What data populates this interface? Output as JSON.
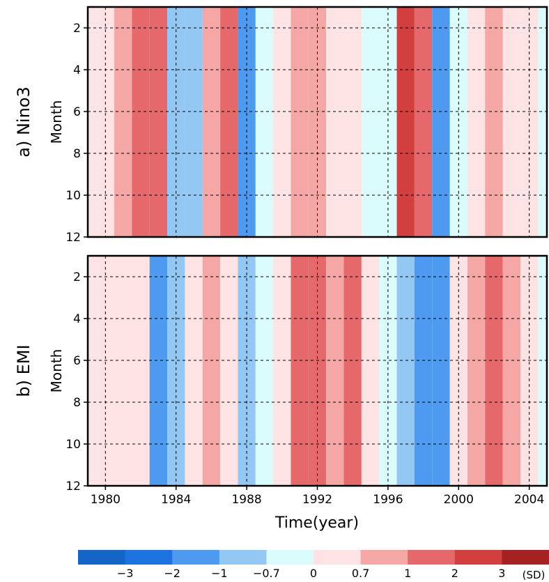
{
  "chart_data": [
    {
      "type": "heatmap",
      "panel_label": "a) Nino3",
      "ylabel": "Month",
      "xlim": [
        1979,
        2005
      ],
      "ylim": [
        12,
        1
      ],
      "yticks": [
        "2",
        "4",
        "6",
        "8",
        "10",
        "12"
      ],
      "xticks": [],
      "anomaly_by_year_sd": [
        [
          1979,
          0
        ],
        [
          1980,
          0.2
        ],
        [
          1981,
          0.8
        ],
        [
          1982,
          1.8
        ],
        [
          1983,
          1.5
        ],
        [
          1984,
          -0.9
        ],
        [
          1985,
          -0.8
        ],
        [
          1986,
          0.8
        ],
        [
          1987,
          1.5
        ],
        [
          1988,
          -1.6
        ],
        [
          1989,
          -0.6
        ],
        [
          1990,
          0.3
        ],
        [
          1991,
          0.7
        ],
        [
          1992,
          0.9
        ],
        [
          1993,
          0.5
        ],
        [
          1994,
          0.6
        ],
        [
          1995,
          -0.3
        ],
        [
          1996,
          -0.5
        ],
        [
          1997,
          2.8
        ],
        [
          1998,
          1.0
        ],
        [
          1999,
          -1.2
        ],
        [
          2000,
          -0.7
        ],
        [
          2001,
          0.2
        ],
        [
          2002,
          0.8
        ],
        [
          2003,
          0.3
        ],
        [
          2004,
          0.4
        ]
      ]
    },
    {
      "type": "heatmap",
      "panel_label": "b) EMI",
      "ylabel": "Month",
      "xlabel": "Time(year)",
      "xlim": [
        1979,
        2005
      ],
      "ylim": [
        12,
        1
      ],
      "yticks": [
        "2",
        "4",
        "6",
        "8",
        "10",
        "12"
      ],
      "xticks": [
        "1980",
        "1984",
        "1988",
        "1992",
        "1996",
        "2000",
        "2004"
      ],
      "anomaly_by_year_sd": [
        [
          1979,
          0.6
        ],
        [
          1980,
          0.4
        ],
        [
          1981,
          0.2
        ],
        [
          1982,
          0.3
        ],
        [
          1983,
          -1.6
        ],
        [
          1984,
          -0.8
        ],
        [
          1985,
          0.4
        ],
        [
          1986,
          0.7
        ],
        [
          1987,
          0.6
        ],
        [
          1988,
          -1.0
        ],
        [
          1989,
          -0.3
        ],
        [
          1990,
          0.6
        ],
        [
          1991,
          1.2
        ],
        [
          1992,
          1.2
        ],
        [
          1993,
          0.8
        ],
        [
          1994,
          1.2
        ],
        [
          1995,
          0.6
        ],
        [
          1996,
          -0.3
        ],
        [
          1997,
          -0.9
        ],
        [
          1998,
          -1.7
        ],
        [
          1999,
          -1.2
        ],
        [
          2000,
          0.1
        ],
        [
          2001,
          0.7
        ],
        [
          2002,
          1.0
        ],
        [
          2003,
          0.8
        ],
        [
          2004,
          0.5
        ]
      ]
    }
  ],
  "colorbar": {
    "levels": [
      "-3",
      "-2",
      "-1",
      "-0.7",
      "0",
      "0.7",
      "1",
      "2",
      "3"
    ],
    "unit": "(SD)",
    "colors": [
      "#1565c8",
      "#1d73e0",
      "#4d9af0",
      "#93c8f5",
      "#dafcfc",
      "#fde3e3",
      "#f5a7a6",
      "#e5696b",
      "#d23f3f",
      "#a52222"
    ]
  }
}
